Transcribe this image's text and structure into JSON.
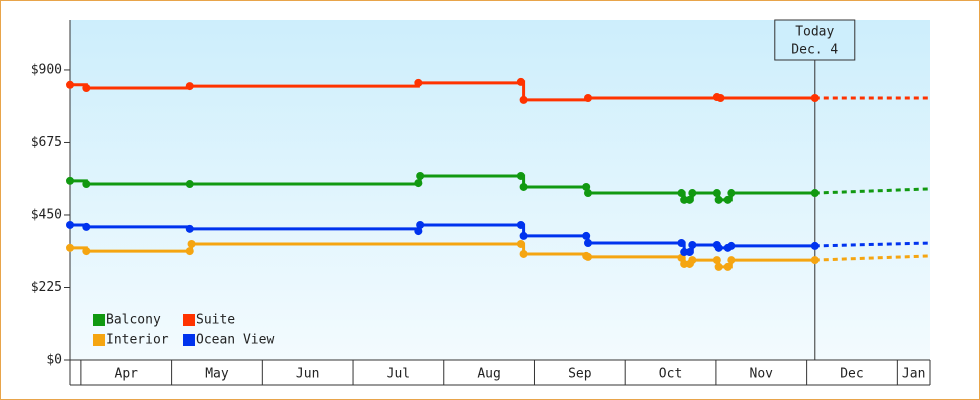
{
  "chart_data": {
    "type": "line",
    "line_shape": "hv",
    "xlim": [
      -0.12,
      9.36
    ],
    "ylim": [
      0,
      1055
    ],
    "xticks": [
      {
        "value": 0,
        "label": "Apr"
      },
      {
        "value": 1,
        "label": "May"
      },
      {
        "value": 2,
        "label": "Jun"
      },
      {
        "value": 3,
        "label": "Jul"
      },
      {
        "value": 4,
        "label": "Aug"
      },
      {
        "value": 5,
        "label": "Sep"
      },
      {
        "value": 6,
        "label": "Oct"
      },
      {
        "value": 7,
        "label": "Nov"
      },
      {
        "value": 8,
        "label": "Dec"
      },
      {
        "value": 9,
        "label": "Jan"
      }
    ],
    "yticks": [
      {
        "value": 0,
        "label": "$0"
      },
      {
        "value": 225,
        "label": "$225"
      },
      {
        "value": 450,
        "label": "$450"
      },
      {
        "value": 675,
        "label": "$675"
      },
      {
        "value": 900,
        "label": "$900"
      }
    ],
    "annotation": {
      "lines": [
        "Today",
        "Dec. 4"
      ],
      "x": 8.09
    },
    "series": [
      {
        "name": "Balcony",
        "color": "#119911",
        "x": [
          -0.12,
          0.06,
          1.2,
          3.72,
          3.74,
          4.85,
          4.88,
          5.57,
          5.59,
          6.62,
          6.65,
          6.71,
          6.74,
          7.01,
          7.03,
          7.13,
          7.17,
          8.09
        ],
        "values": [
          556,
          546,
          546,
          549,
          571,
          571,
          537,
          537,
          518,
          518,
          497,
          497,
          518,
          518,
          497,
          497,
          518,
          518
        ],
        "projection": {
          "x": [
            8.09,
            9.36
          ],
          "values": [
            518,
            531
          ]
        }
      },
      {
        "name": "Suite",
        "color": "#ff3300",
        "x": [
          -0.12,
          0.06,
          1.2,
          3.72,
          4.85,
          4.88,
          5.59,
          7.01,
          7.05,
          8.09
        ],
        "values": [
          854,
          844,
          850,
          860,
          863,
          807,
          813,
          816,
          813,
          813
        ],
        "projection": {
          "x": [
            8.09,
            9.36
          ],
          "values": [
            813,
            813
          ]
        }
      },
      {
        "name": "Interior",
        "color": "#f5a511",
        "x": [
          -0.12,
          0.06,
          1.2,
          1.22,
          4.85,
          4.88,
          5.57,
          5.59,
          6.62,
          6.65,
          6.71,
          6.74,
          7.01,
          7.03,
          7.13,
          7.17,
          8.09
        ],
        "values": [
          348,
          338,
          338,
          360,
          360,
          329,
          323,
          320,
          317,
          298,
          298,
          310,
          310,
          289,
          289,
          310,
          310
        ],
        "projection": {
          "x": [
            8.09,
            9.36
          ],
          "values": [
            310,
            323
          ]
        }
      },
      {
        "name": "Ocean View",
        "color": "#0033ee",
        "x": [
          -0.12,
          0.06,
          1.2,
          3.72,
          3.74,
          4.85,
          4.88,
          5.57,
          5.59,
          6.62,
          6.65,
          6.71,
          6.74,
          7.01,
          7.03,
          7.13,
          7.17,
          8.09
        ],
        "values": [
          419,
          413,
          407,
          400,
          419,
          419,
          385,
          385,
          363,
          363,
          335,
          335,
          357,
          357,
          348,
          348,
          354,
          354
        ],
        "projection": {
          "x": [
            8.09,
            9.36
          ],
          "values": [
            354,
            363
          ]
        }
      }
    ]
  }
}
